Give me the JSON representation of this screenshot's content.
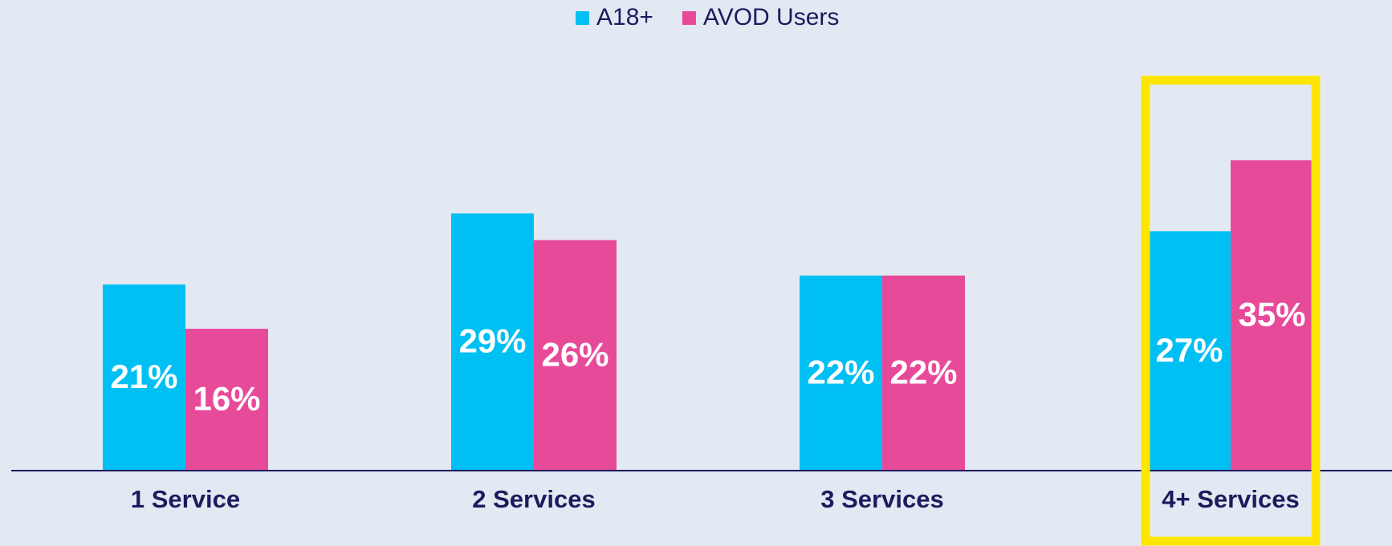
{
  "chart_data": {
    "type": "bar",
    "categories": [
      "1 Service",
      "2 Services",
      "3 Services",
      "4+ Services"
    ],
    "series": [
      {
        "name": "A18+",
        "color": "#00bff3",
        "values": [
          21,
          29,
          22,
          27
        ],
        "value_labels": [
          "21%",
          "29%",
          "22%",
          "27%"
        ]
      },
      {
        "name": "AVOD Users",
        "color": "#e84a9a",
        "values": [
          16,
          26,
          22,
          35
        ],
        "value_labels": [
          "16%",
          "26%",
          "22%",
          "35%"
        ]
      }
    ],
    "ylim": [
      0,
      40
    ]
  }
}
